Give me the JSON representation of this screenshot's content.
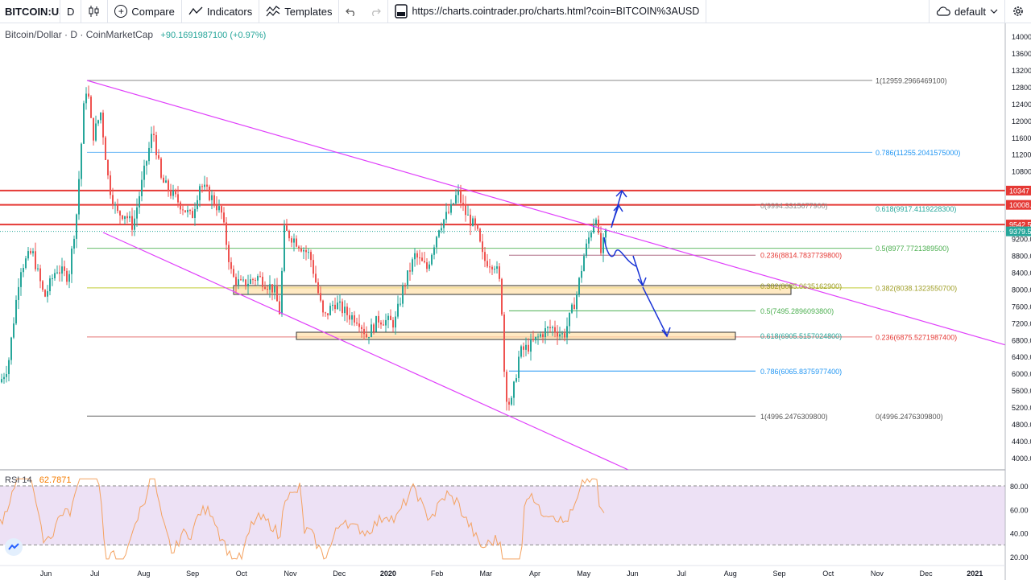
{
  "toolbar": {
    "symbol": "BITCOIN:USD",
    "interval": "D",
    "compare_label": "Compare",
    "indicators_label": "Indicators",
    "templates_label": "Templates",
    "url": "https://charts.cointrader.pro/charts.html?coin=BITCOIN%3AUSD",
    "theme_label": "default",
    "icons": [
      "candles-icon",
      "plus-circle-icon",
      "indicators-icon",
      "templates-icon",
      "undo-icon",
      "redo-icon",
      "url-icon",
      "cloud-icon",
      "chevron-down-icon",
      "gear-icon"
    ]
  },
  "legend": {
    "title": "Bitcoin/Dollar · D · CoinMarketCap",
    "change": "+90.1691987100 (+0.97%)"
  },
  "rsi": {
    "label": "RSI 14",
    "value": "62.7871",
    "levels": [
      80,
      30
    ],
    "y_ticks": [
      "80.00",
      "60.00",
      "40.00",
      "20.00"
    ]
  },
  "price_axis": {
    "ticks": [
      "14000.0",
      "13600.0",
      "13200.0",
      "12800.0",
      "12400.0",
      "12000.0",
      "11600.0",
      "11200.0",
      "10800.0",
      "10400.0",
      "10000.0",
      "9600.0",
      "9200.0",
      "8800.0",
      "8400.0",
      "8000.0",
      "7600.0",
      "7200.0",
      "6800.0",
      "6400.0",
      "6000.0",
      "5600.0",
      "5200.0",
      "4800.0",
      "4400.0",
      "4000.0"
    ],
    "tags": [
      {
        "label": "10347",
        "price": 10347,
        "color": "#e53935"
      },
      {
        "label": "10008.",
        "price": 10008,
        "color": "#e53935"
      },
      {
        "label": "9542.5",
        "price": 9542.5,
        "color": "#e53935"
      },
      {
        "label": "9379.5",
        "price": 9379.5,
        "color": "#26a69a"
      }
    ]
  },
  "time_axis": {
    "labels": [
      "Jun",
      "Jul",
      "Aug",
      "Sep",
      "Oct",
      "Nov",
      "Dec",
      "2020",
      "Feb",
      "Mar",
      "Apr",
      "May",
      "Jun",
      "Jul",
      "Aug",
      "Sep",
      "Oct",
      "Nov",
      "Dec",
      "2021"
    ]
  },
  "fib_labels": [
    {
      "text": "1(12959.2966469100)",
      "price": 12959.3,
      "color": "#555555"
    },
    {
      "text": "0.786(11255.2041575000)",
      "price": 11255.2,
      "color": "#2196f3"
    },
    {
      "text": "0(9994.3315677900)",
      "price": 9994.3,
      "color": "#888888"
    },
    {
      "text": "0.618(9917.4119228300)",
      "price": 9917.4,
      "color": "#26a69a"
    },
    {
      "text": "0.5(8977.7721389500)",
      "price": 8977.8,
      "color": "#4caf50"
    },
    {
      "text": "0.236(8814.7837739800)",
      "price": 8814.8,
      "color": "#e53935"
    },
    {
      "text": "0.382(8085.0635162900)",
      "price": 8085.1,
      "color": "#9e9d24"
    },
    {
      "text": "0.382(8038.1323550700)",
      "price": 8038.1,
      "color": "#9e9d24"
    },
    {
      "text": "0.5(7495.2896093800)",
      "price": 7495.3,
      "color": "#4caf50"
    },
    {
      "text": "0.618(6905.5157024800)",
      "price": 6905.5,
      "color": "#26a69a"
    },
    {
      "text": "0.236(6875.5271987400)",
      "price": 6875.5,
      "color": "#e53935"
    },
    {
      "text": "0.786(6065.8375977400)",
      "price": 6065.8,
      "color": "#2196f3"
    },
    {
      "text": "1(4996.2476309800)",
      "price": 4996.2,
      "color": "#555555"
    },
    {
      "text": "0(4996.2476309800)",
      "price": 4996.2,
      "color": "#555555"
    }
  ],
  "colors": {
    "up": "#26a69a",
    "down": "#ef5350",
    "resistance": "#e53935",
    "channel": "#e040fb",
    "arrows": "#1a34d6",
    "rsi_line": "#f4a261",
    "rsi_band": "#ede1f5"
  }
}
